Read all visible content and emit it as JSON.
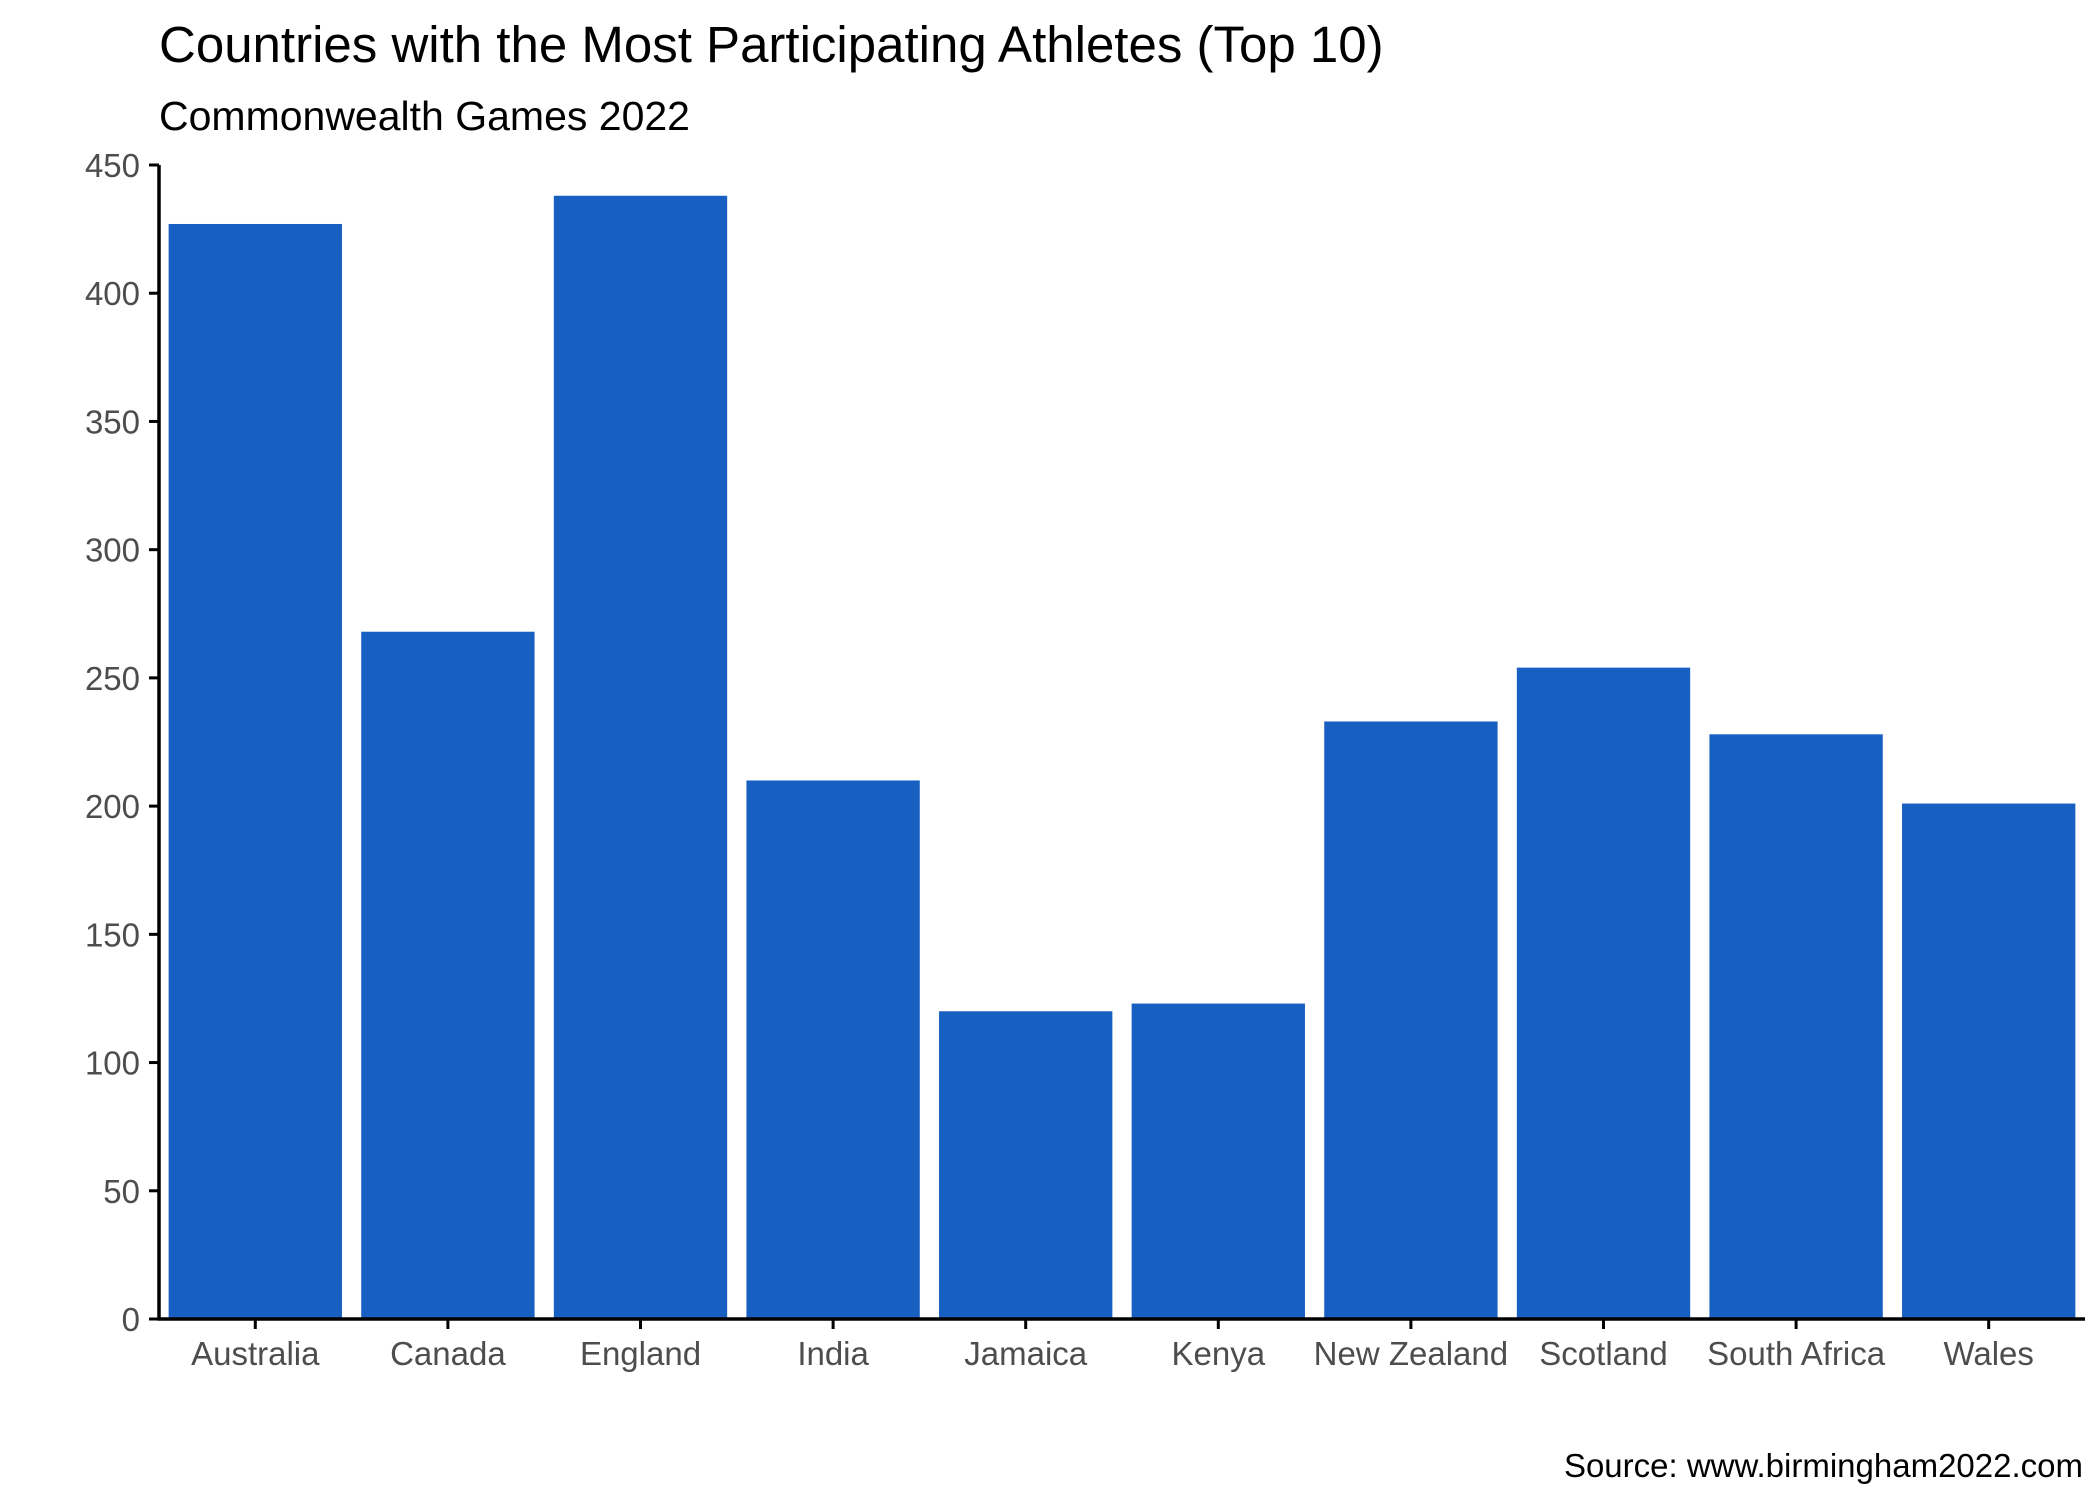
{
  "chart_data": {
    "type": "bar",
    "title": "Countries with the Most Participating Athletes (Top 10)",
    "subtitle": "Commonwealth Games 2022",
    "caption": "Source: www.birmingham2022.com",
    "xlabel": "",
    "ylabel": "",
    "categories": [
      "Australia",
      "Canada",
      "England",
      "India",
      "Jamaica",
      "Kenya",
      "New Zealand",
      "Scotland",
      "South Africa",
      "Wales"
    ],
    "values": [
      427,
      268,
      438,
      210,
      120,
      123,
      233,
      254,
      228,
      201
    ],
    "ylim": [
      0,
      450
    ],
    "yticks": [
      0,
      50,
      100,
      150,
      200,
      250,
      300,
      350,
      400,
      450
    ],
    "bar_color": "#1760C2",
    "grid": false,
    "legend": "none"
  }
}
